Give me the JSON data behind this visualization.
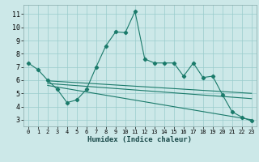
{
  "xlabel": "Humidex (Indice chaleur)",
  "bg_color": "#cce8e8",
  "grid_color": "#99cccc",
  "line_color": "#1a7a6a",
  "xlim": [
    -0.5,
    23.5
  ],
  "ylim": [
    2.5,
    11.7
  ],
  "yticks": [
    3,
    4,
    5,
    6,
    7,
    8,
    9,
    10,
    11
  ],
  "xticks": [
    0,
    1,
    2,
    3,
    4,
    5,
    6,
    7,
    8,
    9,
    10,
    11,
    12,
    13,
    14,
    15,
    16,
    17,
    18,
    19,
    20,
    21,
    22,
    23
  ],
  "series1_x": [
    0,
    1,
    2,
    3,
    4,
    5,
    6,
    7,
    8,
    9,
    10,
    11,
    12,
    13,
    14,
    15,
    16,
    17,
    18,
    19,
    20,
    21,
    22,
    23
  ],
  "series1_y": [
    7.3,
    6.8,
    6.0,
    5.3,
    4.3,
    4.5,
    5.3,
    7.0,
    8.6,
    9.65,
    9.6,
    11.2,
    7.6,
    7.3,
    7.3,
    7.3,
    6.3,
    7.3,
    6.2,
    6.3,
    4.9,
    3.6,
    3.2,
    2.9
  ],
  "series2_x": [
    2,
    23
  ],
  "series2_y": [
    5.95,
    5.0
  ],
  "series3_x": [
    2,
    23
  ],
  "series3_y": [
    5.75,
    4.6
  ],
  "series4_x": [
    2,
    23
  ],
  "series4_y": [
    5.6,
    3.0
  ]
}
